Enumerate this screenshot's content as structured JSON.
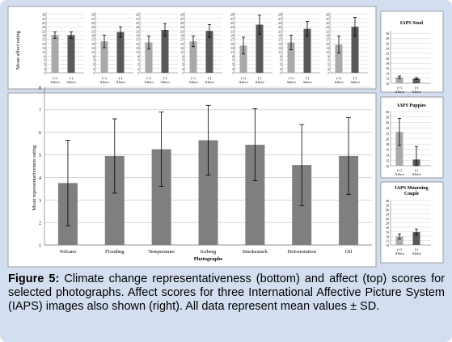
{
  "caption": {
    "label": "Figure 5:",
    "text": " Climate change representativeness (bottom) and affect (top) scores for selected photographs. Affect scores for three International Affective Picture System (IAPS) images also shown (right). All data represent mean values ± SD."
  },
  "colors": {
    "frame": "#d3dff0",
    "positive_bar": "#a9a9a9",
    "negative_bar": "#595959",
    "rep_bar": "#7f7f7f",
    "grid": "#d0d0d0"
  },
  "chart_data": [
    {
      "id": "affect_top",
      "type": "bar",
      "ylabel": "Mean affect rating",
      "ylim": [
        1,
        30
      ],
      "yticks": [
        1,
        3,
        5,
        7,
        9,
        11,
        13,
        15,
        17,
        19,
        21,
        23,
        25,
        27,
        29
      ],
      "categories": [
        "Volcano",
        "Flooding",
        "Temperature",
        "Iceberg",
        "Smokestack",
        "Deforestation",
        "Oil"
      ],
      "tick_labels": [
        "(+)\nAffect",
        "(-)\nAffect"
      ],
      "series": [
        {
          "name": "(+) Affect",
          "values": [
            19,
            16,
            15.5,
            16,
            14,
            15.5,
            14.5
          ],
          "sd": [
            1.5,
            3,
            3,
            2.5,
            4,
            3.5,
            4
          ]
        },
        {
          "name": "(-) Affect",
          "values": [
            19,
            20.5,
            21.5,
            21,
            24,
            22,
            23
          ],
          "sd": [
            1.5,
            2.5,
            3,
            3,
            4.5,
            3.5,
            4.5
          ]
        }
      ]
    },
    {
      "id": "representativeness",
      "type": "bar",
      "xlabel": "Photographs",
      "ylabel": "Mean representativeness rating",
      "ylim": [
        1,
        8
      ],
      "yticks": [
        1,
        2,
        3,
        4,
        5,
        6,
        7,
        8
      ],
      "grid": true,
      "categories": [
        "Volcano",
        "Flooding",
        "Temperature",
        "Iceberg",
        "Smokestack",
        "Deforestation",
        "Oil"
      ],
      "values": [
        3.75,
        4.95,
        5.25,
        5.65,
        5.45,
        4.55,
        4.95
      ],
      "sd": [
        1.9,
        1.65,
        1.65,
        1.55,
        1.6,
        1.8,
        1.7
      ]
    },
    {
      "id": "iaps_stool",
      "type": "bar",
      "title": "IAPS Stool",
      "ylim": [
        10,
        31
      ],
      "yticks": [
        10,
        12,
        14,
        16,
        18,
        20,
        22,
        24,
        26,
        28,
        30
      ],
      "categories": [
        "(+)\nAffect",
        "(-)\nAffect"
      ],
      "values": [
        12.4,
        11.9
      ],
      "sd": [
        0.5,
        0.4
      ]
    },
    {
      "id": "iaps_puppies",
      "type": "bar",
      "title": "IAPS Puppies",
      "ylim": [
        10,
        30
      ],
      "yticks": [
        10,
        12,
        14,
        16,
        18,
        20,
        22,
        24,
        26,
        28,
        30
      ],
      "categories": [
        "(+)\nAffect",
        "(-)\nAffect"
      ],
      "values": [
        22.5,
        12.3
      ],
      "sd": [
        5,
        4.8
      ]
    },
    {
      "id": "iaps_mourning",
      "type": "bar",
      "title": "IAPS Mourning Couple",
      "ylim": [
        10,
        30
      ],
      "yticks": [
        10,
        12,
        14,
        16,
        18,
        20,
        22,
        24,
        26,
        28,
        30
      ],
      "categories": [
        "(+)\nAffect",
        "(-)\nAffect"
      ],
      "values": [
        13.8,
        15.8
      ],
      "sd": [
        1.2,
        1.4
      ]
    }
  ]
}
